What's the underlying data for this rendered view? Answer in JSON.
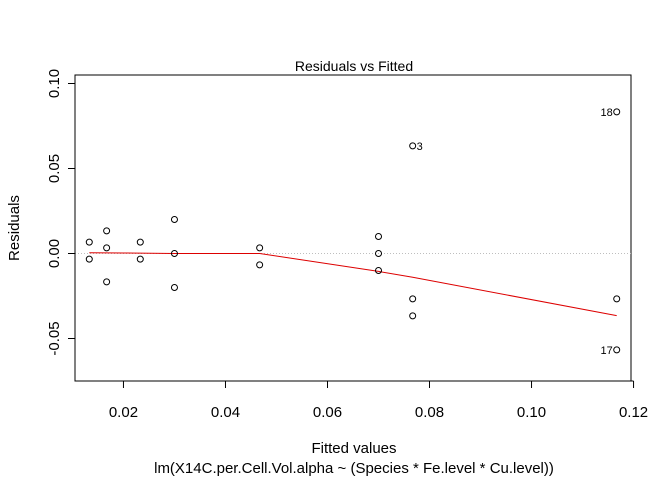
{
  "chart_data": {
    "type": "scatter",
    "title": "Residuals vs Fitted",
    "xlabel": "Fitted values",
    "ylabel": "Residuals",
    "caption": "lm(X14C.per.Cell.Vol.alpha ~ (Species * Fe.level * Cu.level))",
    "xlim": [
      0.0105,
      0.1195
    ],
    "ylim": [
      -0.075,
      0.105
    ],
    "xticks": [
      0.02,
      0.04,
      0.06,
      0.08,
      0.1,
      0.12
    ],
    "xtick_labels": [
      "0.02",
      "0.04",
      "0.06",
      "0.08",
      "0.10",
      "0.12"
    ],
    "yticks": [
      -0.05,
      0.0,
      0.05,
      0.1
    ],
    "ytick_labels": [
      "-0.05",
      "0.00",
      "0.05",
      "0.10"
    ],
    "grid": false,
    "zero_line": {
      "y": 0,
      "style": "dotted",
      "color": "#bebebe"
    },
    "points": [
      {
        "x": 0.0133,
        "y": 0.0067
      },
      {
        "x": 0.0133,
        "y": -0.0033
      },
      {
        "x": 0.0167,
        "y": 0.0133
      },
      {
        "x": 0.0167,
        "y": 0.0033
      },
      {
        "x": 0.0167,
        "y": -0.0167
      },
      {
        "x": 0.0233,
        "y": 0.0067
      },
      {
        "x": 0.0233,
        "y": -0.0033
      },
      {
        "x": 0.03,
        "y": 0.02
      },
      {
        "x": 0.03,
        "y": 0.0
      },
      {
        "x": 0.03,
        "y": -0.02
      },
      {
        "x": 0.0467,
        "y": 0.0033
      },
      {
        "x": 0.0467,
        "y": -0.0067
      },
      {
        "x": 0.07,
        "y": 0.01
      },
      {
        "x": 0.07,
        "y": 0.0
      },
      {
        "x": 0.07,
        "y": -0.01
      },
      {
        "x": 0.0767,
        "y": 0.0633
      },
      {
        "x": 0.0767,
        "y": -0.0267
      },
      {
        "x": 0.0767,
        "y": -0.0367
      },
      {
        "x": 0.1167,
        "y": 0.0833
      },
      {
        "x": 0.1167,
        "y": -0.0267
      },
      {
        "x": 0.1167,
        "y": -0.0567
      }
    ],
    "labeled_points": [
      {
        "label": "3",
        "x": 0.0767,
        "y": 0.0633,
        "side": "right"
      },
      {
        "label": "18",
        "x": 0.1167,
        "y": 0.0833,
        "side": "left"
      },
      {
        "label": "17",
        "x": 0.1167,
        "y": -0.0567,
        "side": "left"
      }
    ],
    "smoother": {
      "color": "#dd0000",
      "x": [
        0.0133,
        0.02,
        0.03,
        0.0467,
        0.07,
        0.0767,
        0.1167
      ],
      "y": [
        0.0005,
        0.0003,
        0.0,
        0.0,
        -0.0105,
        -0.014,
        -0.0365
      ]
    }
  }
}
